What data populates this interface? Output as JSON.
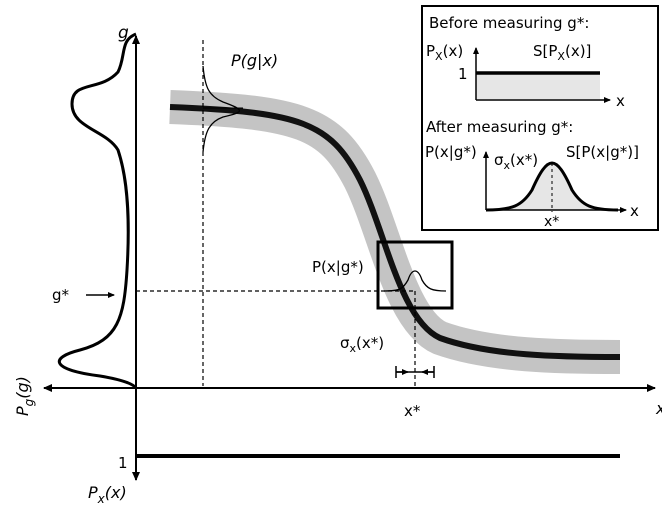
{
  "labels": {
    "g_axis": "g",
    "p_g_given_x": "P(g|x)",
    "g_star": "g*",
    "p_x_given_g_star": "P(x|g*)",
    "sigma_label_main": "σ",
    "sigma_sub_main": "x",
    "sigma_tail_main": "(x*)",
    "x_star": "x*",
    "x_axis": "x",
    "pg_main": "P",
    "pg_sub": "g",
    "pg_tail": "(g)",
    "px_main": "P",
    "px_sub": "x",
    "px_tail": "(x)",
    "one_bottom": "1"
  },
  "inset": {
    "before_title": "Before measuring g*:",
    "before_ylabel_main": "P",
    "before_ylabel_sub": "X",
    "before_ylabel_tail": "(x)",
    "before_one": "1",
    "before_entropy_main": "S[P",
    "before_entropy_sub": "X",
    "before_entropy_tail": "(x)]",
    "before_x": "x",
    "after_title": "After measuring g*:",
    "after_ylabel": "P(x|g*)",
    "after_sigma_main": "σ",
    "after_sigma_sub": "x",
    "after_sigma_tail": "(x*)",
    "after_entropy": "S[P(x|g*)]",
    "after_x": "x",
    "after_xstar": "x*"
  },
  "colors": {
    "curve": "#111111",
    "band": "#c4c4c4",
    "inset_fill": "#e6e6e6",
    "axes": "#000000"
  }
}
